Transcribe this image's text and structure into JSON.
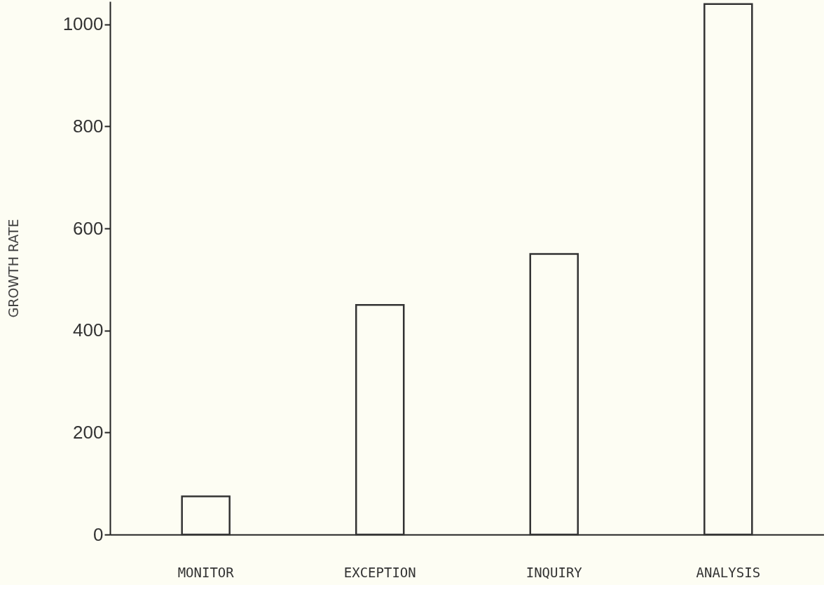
{
  "chart_data": {
    "type": "bar",
    "ylabel": "GROWTH RATE",
    "categories": [
      "MONITOR",
      "EXCEPTION",
      "INQUIRY",
      "ANALYSIS"
    ],
    "values": [
      75,
      450,
      550,
      1040
    ],
    "color": "#333333",
    "ylim": [
      0,
      1045
    ],
    "yticks": [
      0,
      200,
      400,
      600,
      800,
      1000
    ],
    "grid": false
  }
}
